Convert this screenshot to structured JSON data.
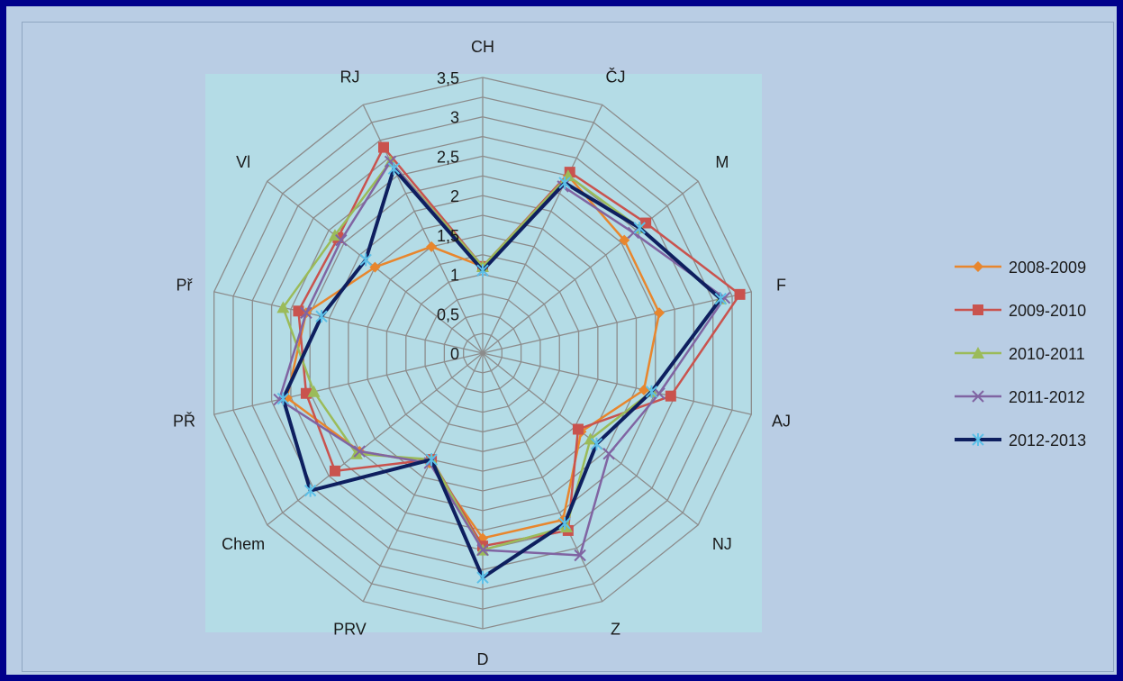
{
  "chart_data": {
    "type": "radar",
    "categories": [
      "CH",
      "ČJ",
      "M",
      "F",
      "AJ",
      "NJ",
      "Z",
      "D",
      "PRV",
      "Chem",
      "PŘ",
      "Př",
      "Vl",
      "RJ"
    ],
    "rmax": 3.5,
    "ticks": [
      "0",
      "0,5",
      "1",
      "1,5",
      "2",
      "2,5",
      "3",
      "3,5"
    ],
    "tick_values": [
      0,
      0.5,
      1,
      1.5,
      2,
      2.5,
      3,
      3.5
    ],
    "legend_position": "right",
    "series": [
      {
        "name": "2008-2009",
        "color": "#e8862d",
        "marker": "diamond",
        "width": 2.5,
        "values": [
          1.1,
          2.5,
          2.3,
          2.3,
          2.1,
          1.6,
          2.35,
          2.35,
          1.55,
          2.0,
          2.55,
          2.3,
          1.75,
          1.5
        ]
      },
      {
        "name": "2009-2010",
        "color": "#c9534e",
        "marker": "square",
        "width": 2.5,
        "values": [
          1.1,
          2.55,
          2.65,
          3.35,
          2.45,
          1.55,
          2.5,
          2.45,
          1.5,
          2.4,
          2.3,
          2.4,
          2.35,
          2.9
        ]
      },
      {
        "name": "2010-2011",
        "color": "#9bbb59",
        "marker": "triangle",
        "width": 2.5,
        "values": [
          1.1,
          2.5,
          2.55,
          3.1,
          2.2,
          1.75,
          2.45,
          2.5,
          1.5,
          2.05,
          2.2,
          2.6,
          2.4,
          2.7
        ]
      },
      {
        "name": "2011-2012",
        "color": "#8064a2",
        "marker": "x",
        "width": 2.5,
        "values": [
          1.05,
          2.35,
          2.45,
          3.15,
          2.3,
          2.05,
          2.85,
          2.5,
          1.55,
          2.0,
          2.65,
          2.3,
          2.3,
          2.7
        ]
      },
      {
        "name": "2012-2013",
        "color": "#0e1f5f",
        "marker": "star",
        "width": 4,
        "values": [
          1.05,
          2.4,
          2.55,
          3.1,
          2.2,
          1.85,
          2.4,
          2.85,
          1.5,
          2.8,
          2.6,
          2.1,
          1.9,
          2.6
        ]
      }
    ]
  }
}
